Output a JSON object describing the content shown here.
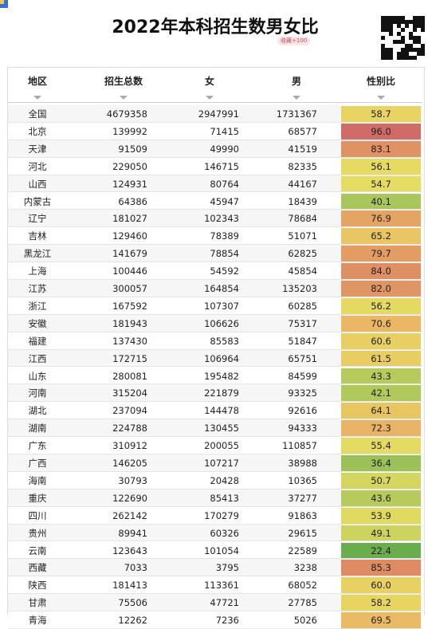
{
  "title": "2022年本科招生数男女比",
  "badge": "收藏+100",
  "table": {
    "header": [
      "地区",
      "招生总数",
      "女",
      "男",
      "性别比"
    ],
    "rows": [
      [
        "全国",
        "4679358",
        "2947991",
        "1731367",
        "58.7"
      ],
      [
        "北京",
        "139992",
        "71415",
        "68577",
        "96.0"
      ],
      [
        "天津",
        "91509",
        "49990",
        "41519",
        "83.1"
      ],
      [
        "河北",
        "229050",
        "146715",
        "82335",
        "56.1"
      ],
      [
        "山西",
        "124931",
        "80764",
        "44167",
        "54.7"
      ],
      [
        "内蒙古",
        "64386",
        "45947",
        "18439",
        "40.1"
      ],
      [
        "辽宁",
        "181027",
        "102343",
        "78684",
        "76.9"
      ],
      [
        "吉林",
        "129460",
        "78389",
        "51071",
        "65.2"
      ],
      [
        "黑龙江",
        "141679",
        "78854",
        "62825",
        "79.7"
      ],
      [
        "上海",
        "100446",
        "54592",
        "45854",
        "84.0"
      ],
      [
        "江苏",
        "300057",
        "164854",
        "135203",
        "82.0"
      ],
      [
        "浙江",
        "167592",
        "107307",
        "60285",
        "56.2"
      ],
      [
        "安徽",
        "181943",
        "106626",
        "75317",
        "70.6"
      ],
      [
        "福建",
        "137430",
        "85583",
        "51847",
        "60.6"
      ],
      [
        "江西",
        "172715",
        "106964",
        "65751",
        "61.5"
      ],
      [
        "山东",
        "280081",
        "195482",
        "84599",
        "43.3"
      ],
      [
        "河南",
        "315204",
        "221879",
        "93325",
        "42.1"
      ],
      [
        "湖北",
        "237094",
        "144478",
        "92616",
        "64.1"
      ],
      [
        "湖南",
        "224788",
        "130455",
        "94333",
        "72.3"
      ],
      [
        "广东",
        "310912",
        "200055",
        "110857",
        "55.4"
      ],
      [
        "广西",
        "146205",
        "107217",
        "38988",
        "36.4"
      ],
      [
        "海南",
        "30793",
        "20428",
        "10365",
        "50.7"
      ],
      [
        "重庆",
        "122690",
        "85413",
        "37277",
        "43.6"
      ],
      [
        "四川",
        "262142",
        "170279",
        "91863",
        "53.9"
      ],
      [
        "贵州",
        "89941",
        "60326",
        "29615",
        "49.1"
      ],
      [
        "云南",
        "123643",
        "101054",
        "22589",
        "22.4"
      ],
      [
        "西藏",
        "7033",
        "3795",
        "3238",
        "85.3"
      ],
      [
        "陕西",
        "181413",
        "113361",
        "68052",
        "60.0"
      ],
      [
        "甘肃",
        "75506",
        "47721",
        "27785",
        "58.2"
      ],
      [
        "青海",
        "12262",
        "7236",
        "5026",
        "69.5"
      ]
    ]
  }
}
